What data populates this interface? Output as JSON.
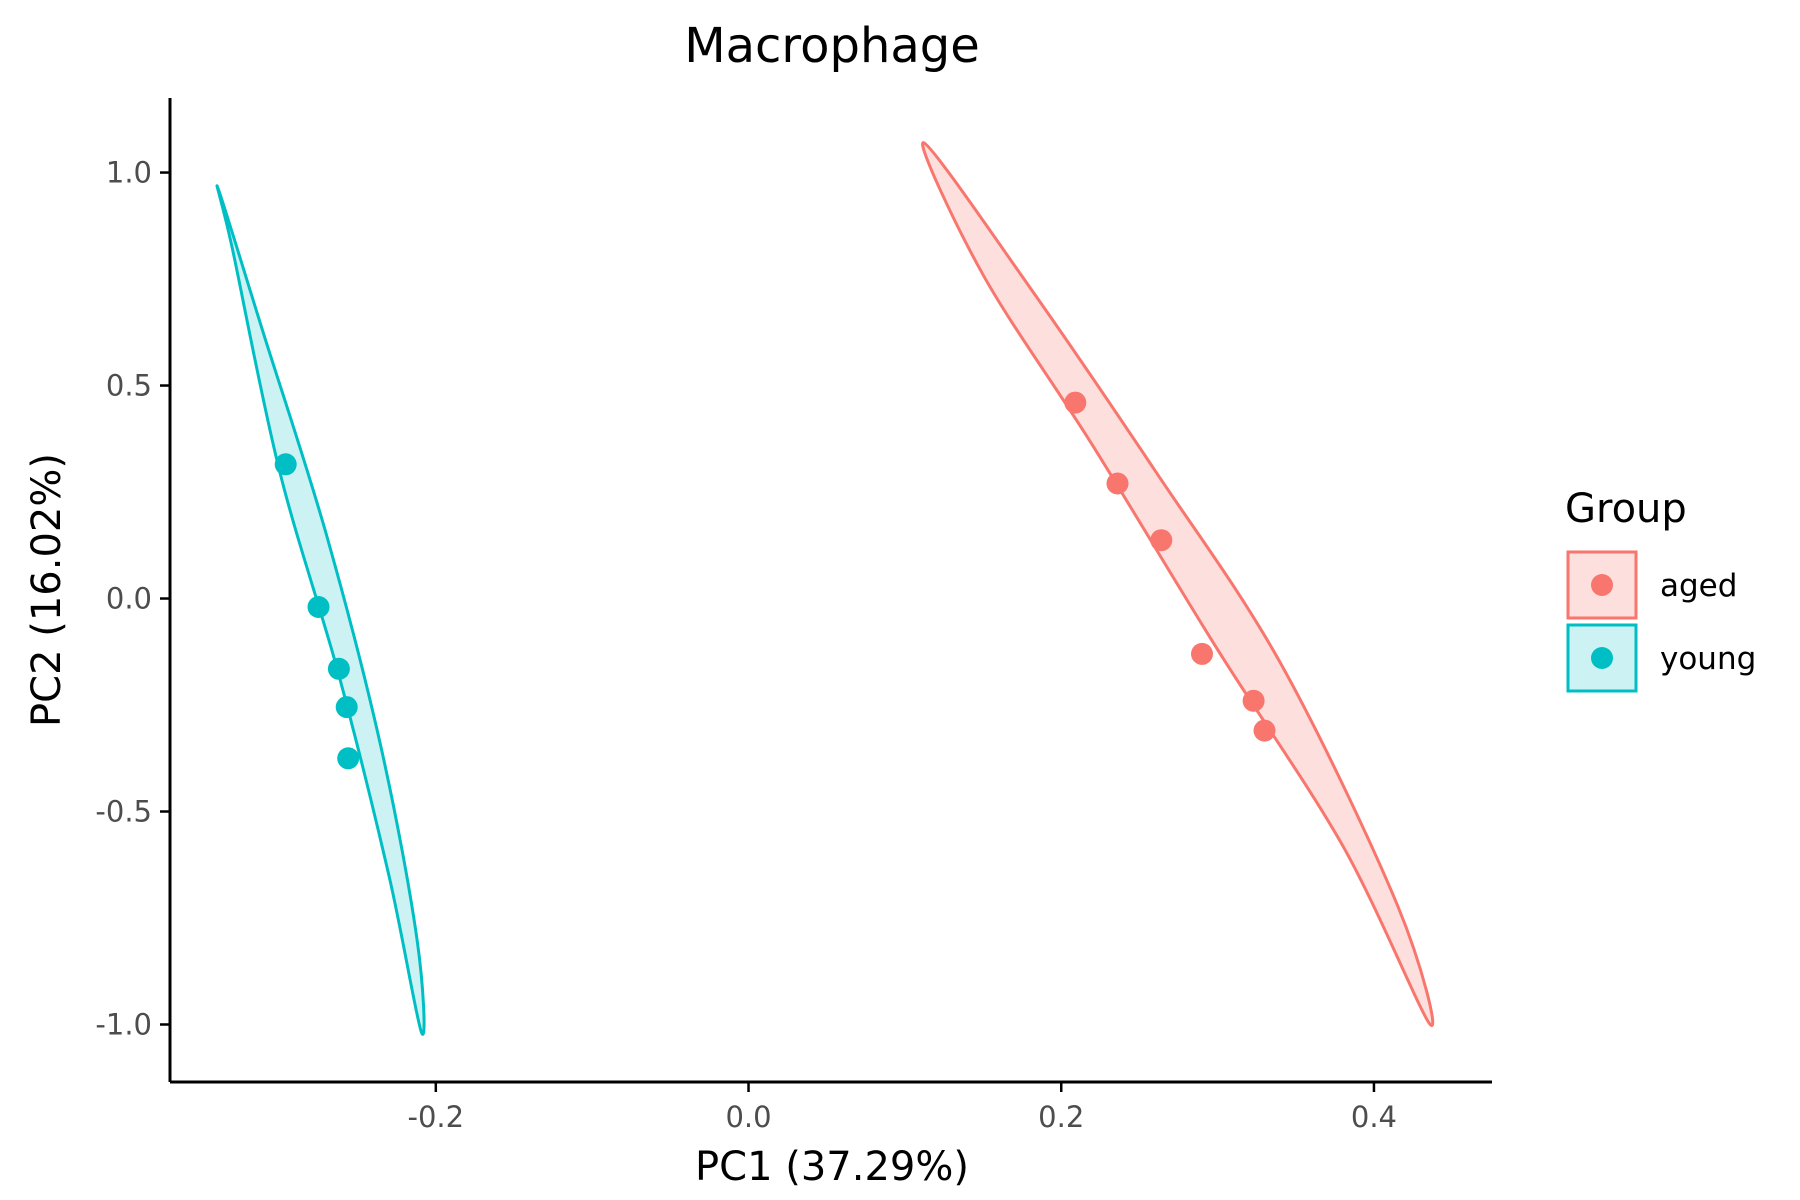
{
  "chart_data": {
    "type": "scatter",
    "title": "Macrophage",
    "xlabel": "PC1 (37.29%)",
    "ylabel": "PC2 (16.02%)",
    "xlim": [
      -0.37,
      0.4755
    ],
    "ylim": [
      -1.135,
      1.175
    ],
    "x_ticks": [
      -0.2,
      0.0,
      0.2,
      0.4
    ],
    "x_tick_labels": [
      "-0.2",
      "0.0",
      "0.2",
      "0.4"
    ],
    "y_ticks": [
      -1.0,
      -0.5,
      0.0,
      0.5,
      1.0
    ],
    "y_tick_labels": [
      "-1.0",
      "-0.5",
      "0.0",
      "0.5",
      "1.0"
    ],
    "grid": false,
    "legend": {
      "title": "Group",
      "position": "right"
    },
    "series": [
      {
        "name": "aged",
        "color": "#F8766D",
        "fill": "#FDE0DE",
        "points": [
          {
            "x": 0.209,
            "y": 0.46
          },
          {
            "x": 0.236,
            "y": 0.27
          },
          {
            "x": 0.264,
            "y": 0.137
          },
          {
            "x": 0.29,
            "y": -0.13
          },
          {
            "x": 0.323,
            "y": -0.24
          },
          {
            "x": 0.33,
            "y": -0.31
          }
        ],
        "ellipse": [
          [
            0.112,
            1.07
          ],
          [
            0.18,
            0.73
          ],
          [
            0.26,
            0.3
          ],
          [
            0.34,
            -0.15
          ],
          [
            0.415,
            -0.72
          ],
          [
            0.436,
            -1.0
          ],
          [
            0.38,
            -0.58
          ],
          [
            0.3,
            -0.12
          ],
          [
            0.22,
            0.36
          ],
          [
            0.15,
            0.76
          ]
        ]
      },
      {
        "name": "young",
        "color": "#00BFC4",
        "fill": "#CCF2F3",
        "points": [
          {
            "x": -0.296,
            "y": 0.315
          },
          {
            "x": -0.275,
            "y": -0.02
          },
          {
            "x": -0.262,
            "y": -0.165
          },
          {
            "x": -0.257,
            "y": -0.255
          },
          {
            "x": -0.256,
            "y": -0.375
          }
        ],
        "ellipse": [
          [
            -0.339,
            0.96
          ],
          [
            -0.31,
            0.62
          ],
          [
            -0.27,
            0.15
          ],
          [
            -0.235,
            -0.35
          ],
          [
            -0.212,
            -0.8
          ],
          [
            -0.209,
            -1.02
          ],
          [
            -0.23,
            -0.65
          ],
          [
            -0.262,
            -0.18
          ],
          [
            -0.3,
            0.3
          ],
          [
            -0.33,
            0.82
          ]
        ]
      }
    ]
  }
}
